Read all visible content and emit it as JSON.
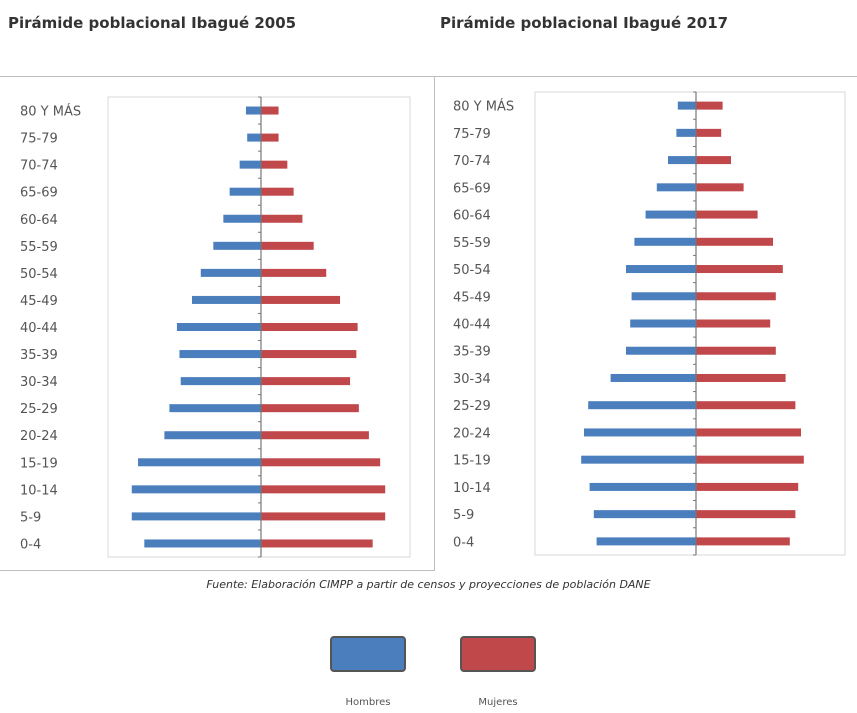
{
  "chart_data": [
    {
      "type": "bar",
      "title": "Pirámide poblacional Ibagué 2005",
      "orientation": "horizontal-pyramid",
      "categories": [
        "80 Y MÁS",
        "75-79",
        "70-74",
        "65-69",
        "60-64",
        "55-59",
        "50-54",
        "45-49",
        "40-44",
        "35-39",
        "30-34",
        "25-29",
        "20-24",
        "15-19",
        "10-14",
        "5-9",
        "0-4"
      ],
      "series": [
        {
          "name": "Hombres",
          "color": "#4a7ebd",
          "values": [
            12,
            11,
            17,
            25,
            30,
            38,
            48,
            55,
            67,
            65,
            64,
            73,
            77,
            98,
            103,
            103,
            93
          ]
        },
        {
          "name": "Mujeres",
          "color": "#c0474a",
          "values": [
            14,
            14,
            21,
            26,
            33,
            42,
            52,
            63,
            77,
            76,
            71,
            78,
            86,
            95,
            99,
            99,
            89
          ]
        }
      ],
      "xlim": [
        -110,
        110
      ],
      "grid": false
    },
    {
      "type": "bar",
      "title": "Pirámide poblacional Ibagué 2017",
      "orientation": "horizontal-pyramid",
      "categories": [
        "80 Y MÁS",
        "75-79",
        "70-74",
        "65-69",
        "60-64",
        "55-59",
        "50-54",
        "45-49",
        "40-44",
        "35-39",
        "30-34",
        "25-29",
        "20-24",
        "15-19",
        "10-14",
        "5-9",
        "0-4"
      ],
      "series": [
        {
          "name": "Hombres",
          "color": "#4a7ebd",
          "values": [
            13,
            14,
            20,
            28,
            36,
            44,
            50,
            46,
            47,
            50,
            61,
            77,
            80,
            82,
            76,
            73,
            71
          ]
        },
        {
          "name": "Mujeres",
          "color": "#c0474a",
          "values": [
            19,
            18,
            25,
            34,
            44,
            55,
            62,
            57,
            53,
            57,
            64,
            71,
            75,
            77,
            73,
            71,
            67
          ]
        }
      ],
      "xlim": [
        -110,
        110
      ],
      "grid": false
    }
  ],
  "source_note": "Fuente: Elaboración CIMPP a partir de censos y proyecciones de población DANE",
  "legend": {
    "hombres_label": "Hombres",
    "mujeres_label": "Mujeres",
    "hombres_color": "#4a7ebd",
    "mujeres_color": "#c0474a"
  }
}
